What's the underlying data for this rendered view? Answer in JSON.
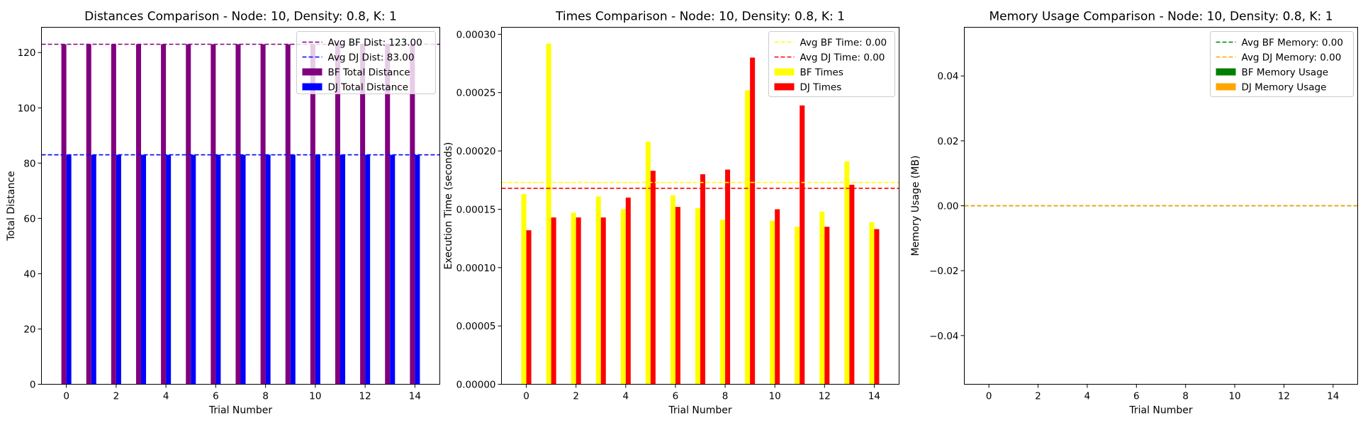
{
  "chart_data": [
    {
      "type": "bar",
      "title": "Distances Comparison - Node: 10, Density: 0.8, K: 1",
      "xlabel": "Trial Number",
      "ylabel": "Total Distance",
      "xlim": [
        -1,
        15
      ],
      "ylim": [
        0,
        129.15
      ],
      "xticks": [
        0,
        2,
        4,
        6,
        8,
        10,
        12,
        14
      ],
      "yticks": [
        0,
        20,
        40,
        60,
        80,
        100,
        120
      ],
      "ytick_labels": [
        "0",
        "20",
        "40",
        "60",
        "80",
        "100",
        "120"
      ],
      "x": [
        0,
        1,
        2,
        3,
        4,
        5,
        6,
        7,
        8,
        9,
        10,
        11,
        12,
        13,
        14
      ],
      "series": [
        {
          "name": "BF Total Distance",
          "color": "#800080",
          "values": [
            123,
            123,
            123,
            123,
            123,
            123,
            123,
            123,
            123,
            123,
            123,
            123,
            123,
            123,
            123
          ]
        },
        {
          "name": "DJ Total Distance",
          "color": "#0000ff",
          "values": [
            83,
            83,
            83,
            83,
            83,
            83,
            83,
            83,
            83,
            83,
            83,
            83,
            83,
            83,
            83
          ]
        }
      ],
      "hlines": [
        {
          "name": "Avg BF Dist: 123.00",
          "value": 123,
          "color": "#800080"
        },
        {
          "name": "Avg DJ Dist: 83.00",
          "value": 83,
          "color": "#0000ff"
        }
      ],
      "legend": "upper right",
      "grid": false
    },
    {
      "type": "bar",
      "title": "Times Comparison - Node: 10, Density: 0.8, K: 1",
      "xlabel": "Trial Number",
      "ylabel": "Execution Time (seconds)",
      "xlim": [
        -1,
        15
      ],
      "ylim": [
        0,
        0.000306
      ],
      "xticks": [
        0,
        2,
        4,
        6,
        8,
        10,
        12,
        14
      ],
      "yticks": [
        0,
        5e-05,
        0.0001,
        0.00015,
        0.0002,
        0.00025,
        0.0003
      ],
      "ytick_labels": [
        "0.00000",
        "0.00005",
        "0.00010",
        "0.00015",
        "0.00020",
        "0.00025",
        "0.00030"
      ],
      "x": [
        0,
        1,
        2,
        3,
        4,
        5,
        6,
        7,
        8,
        9,
        10,
        11,
        12,
        13,
        14
      ],
      "series": [
        {
          "name": "BF Times",
          "color": "#ffff00",
          "values": [
            0.000163,
            0.000292,
            0.000147,
            0.000161,
            0.00015,
            0.000208,
            0.000162,
            0.000151,
            0.000141,
            0.000252,
            0.00014,
            0.000135,
            0.000148,
            0.000191,
            0.000139
          ]
        },
        {
          "name": "DJ Times",
          "color": "#ff0000",
          "values": [
            0.000132,
            0.000143,
            0.000143,
            0.000143,
            0.00016,
            0.000183,
            0.000152,
            0.00018,
            0.000184,
            0.00028,
            0.00015,
            0.000239,
            0.000135,
            0.000171,
            0.000133
          ]
        }
      ],
      "hlines": [
        {
          "name": "Avg BF Time: 0.00",
          "value": 0.000173,
          "color": "#ffff00"
        },
        {
          "name": "Avg DJ Time: 0.00",
          "value": 0.000168,
          "color": "#ff0000"
        }
      ],
      "legend": "upper right",
      "grid": false
    },
    {
      "type": "bar",
      "title": "Memory Usage Comparison - Node: 10, Density: 0.8, K: 1",
      "xlabel": "Trial Number",
      "ylabel": "Memory Usage (MB)",
      "xlim": [
        -1,
        15
      ],
      "ylim": [
        -0.055,
        0.055
      ],
      "xticks": [
        0,
        2,
        4,
        6,
        8,
        10,
        12,
        14
      ],
      "yticks": [
        -0.04,
        -0.02,
        0,
        0.02,
        0.04
      ],
      "ytick_labels": [
        "−0.04",
        "−0.02",
        "0.00",
        "0.02",
        "0.04"
      ],
      "x": [
        0,
        1,
        2,
        3,
        4,
        5,
        6,
        7,
        8,
        9,
        10,
        11,
        12,
        13,
        14
      ],
      "series": [
        {
          "name": "BF Memory Usage",
          "color": "#008000",
          "values": [
            0,
            0,
            0,
            0,
            0,
            0,
            0,
            0,
            0,
            0,
            0,
            0,
            0,
            0,
            0
          ]
        },
        {
          "name": "DJ Memory Usage",
          "color": "#ffa500",
          "values": [
            0,
            0,
            0,
            0,
            0,
            0,
            0,
            0,
            0,
            0,
            0,
            0,
            0,
            0,
            0
          ]
        }
      ],
      "hlines": [
        {
          "name": "Avg BF Memory: 0.00",
          "value": 0,
          "color": "#008000"
        },
        {
          "name": "Avg DJ Memory: 0.00",
          "value": 0,
          "color": "#ffa500"
        }
      ],
      "legend": "upper right",
      "grid": false
    }
  ]
}
